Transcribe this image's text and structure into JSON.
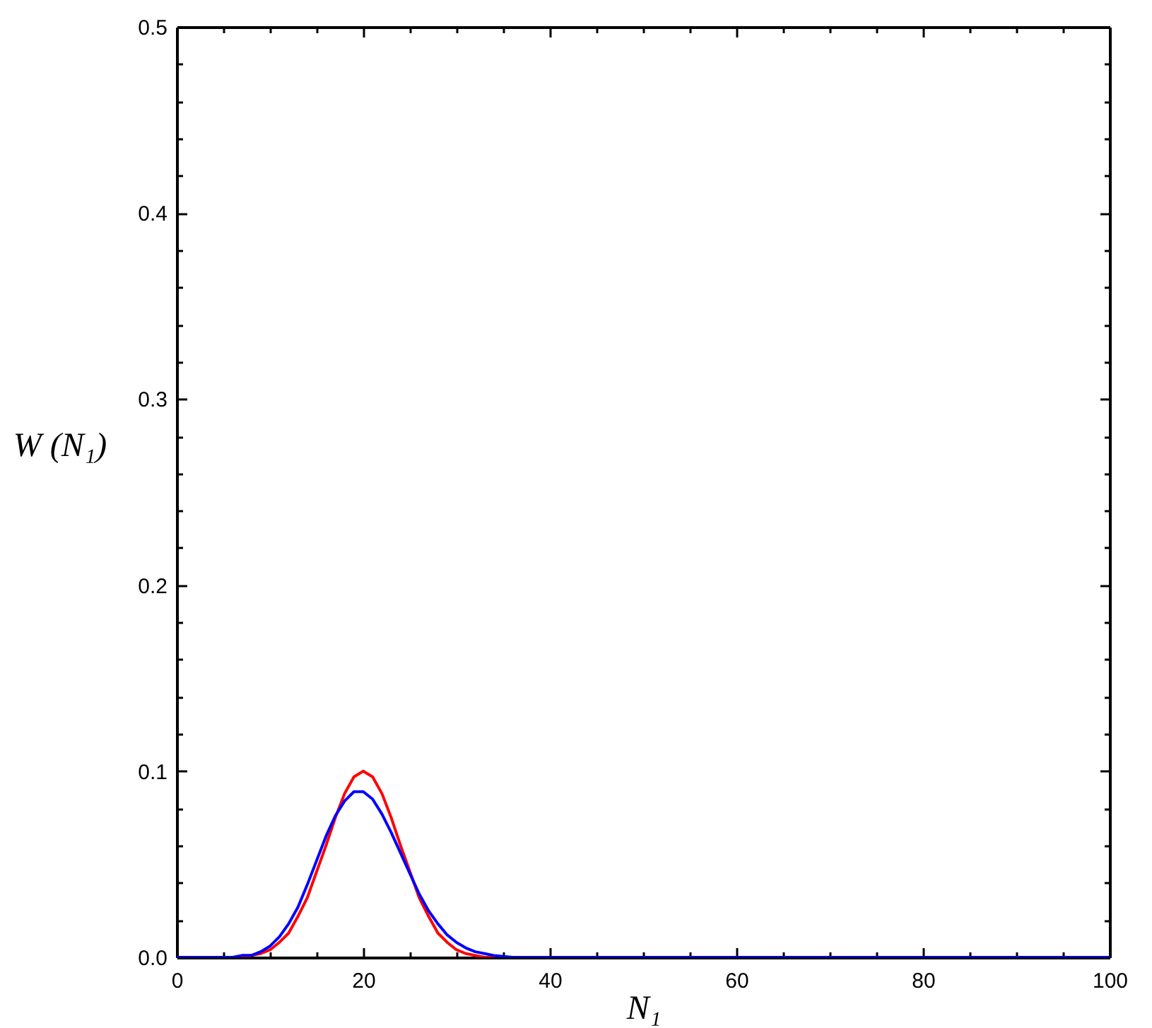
{
  "chart_data": {
    "type": "line",
    "xlabel": "N₁",
    "ylabel": "W (N₁)",
    "x": [
      0,
      2,
      4,
      6,
      7,
      8,
      9,
      10,
      11,
      12,
      13,
      14,
      15,
      16,
      17,
      18,
      19,
      20,
      21,
      22,
      23,
      24,
      25,
      26,
      27,
      28,
      29,
      30,
      31,
      32,
      33,
      34,
      36,
      38,
      40,
      50,
      60,
      70,
      80,
      90,
      100
    ],
    "series": [
      {
        "color": "#ff0000",
        "values": [
          null,
          null,
          null,
          null,
          0,
          0.001,
          0.002,
          0.004,
          0.008,
          0.013,
          0.022,
          0.032,
          0.046,
          0.06,
          0.075,
          0.088,
          0.097,
          0.1,
          0.097,
          0.088,
          0.075,
          0.06,
          0.046,
          0.032,
          0.022,
          0.013,
          0.008,
          0.004,
          0.002,
          0.001,
          0,
          0,
          null,
          null,
          null,
          null,
          null,
          null,
          null,
          null,
          null
        ]
      },
      {
        "color": "#0000ff",
        "values": [
          0,
          0,
          0,
          0,
          0.001,
          0.001,
          0.003,
          0.006,
          0.011,
          0.018,
          0.027,
          0.039,
          0.052,
          0.065,
          0.076,
          0.084,
          0.089,
          0.089,
          0.085,
          0.077,
          0.067,
          0.056,
          0.045,
          0.034,
          0.025,
          0.018,
          0.012,
          0.008,
          0.005,
          0.003,
          0.002,
          0.001,
          0,
          0,
          0,
          0,
          0,
          0,
          0,
          0,
          0
        ]
      }
    ],
    "xlim": [
      0,
      100
    ],
    "xticks": [
      0,
      {
        "value": 5,
        "label": null
      },
      {
        "value": 10,
        "label": null
      },
      {
        "value": 15,
        "label": null
      },
      20,
      {
        "value": 25,
        "label": null
      },
      {
        "value": 30,
        "label": null
      },
      {
        "value": 35,
        "label": null
      },
      40,
      {
        "value": 45,
        "label": null
      },
      {
        "value": 50,
        "label": null
      },
      {
        "value": 55,
        "label": null
      },
      60,
      {
        "value": 65,
        "label": null
      },
      {
        "value": 70,
        "label": null
      },
      {
        "value": 75,
        "label": null
      },
      80,
      {
        "value": 85,
        "label": null
      },
      {
        "value": 90,
        "label": null
      },
      {
        "value": 95,
        "label": null
      },
      100
    ],
    "ylim": [
      0,
      0.5
    ],
    "yticks": [
      {
        "value": 0,
        "label": "0.0"
      },
      {
        "value": 0.02,
        "label": null
      },
      {
        "value": 0.04,
        "label": null
      },
      {
        "value": 0.06,
        "label": null
      },
      {
        "value": 0.08,
        "label": null
      },
      0.1,
      {
        "value": 0.12,
        "label": null
      },
      {
        "value": 0.14,
        "label": null
      },
      {
        "value": 0.16,
        "label": null
      },
      {
        "value": 0.18,
        "label": null
      },
      0.2,
      {
        "value": 0.22,
        "label": null
      },
      {
        "value": 0.24,
        "label": null
      },
      {
        "value": 0.26,
        "label": null
      },
      {
        "value": 0.28,
        "label": null
      },
      0.3,
      {
        "value": 0.32,
        "label": null
      },
      {
        "value": 0.34,
        "label": null
      },
      {
        "value": 0.36,
        "label": null
      },
      {
        "value": 0.38,
        "label": null
      },
      0.4,
      {
        "value": 0.42,
        "label": null
      },
      {
        "value": 0.44,
        "label": null
      },
      {
        "value": 0.46,
        "label": null
      },
      {
        "value": 0.48,
        "label": null
      },
      0.5
    ],
    "line_style": "solid",
    "grid": false
  }
}
